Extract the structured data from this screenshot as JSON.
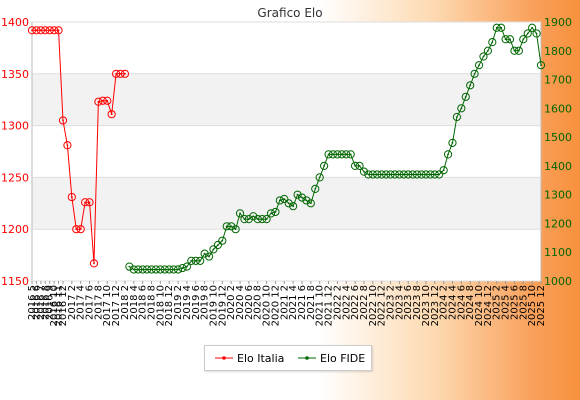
{
  "chart_data": {
    "type": "line",
    "title": "Grafico Elo",
    "grid": true,
    "legend_position": "bottom",
    "y_left": {
      "range": [
        1150,
        1400
      ],
      "ticks": [
        1150,
        1200,
        1250,
        1300,
        1350,
        1400
      ],
      "color": "#ff0000"
    },
    "y_right": {
      "range": [
        1000,
        1900
      ],
      "ticks": [
        1000,
        1100,
        1200,
        1300,
        1400,
        1500,
        1600,
        1700,
        1800,
        1900
      ],
      "color": "#006600"
    },
    "categories": [
      "2016 5",
      "2016 6",
      "2016 7",
      "2016 8",
      "2016 9",
      "2016 10",
      "2016 11",
      "2016 12",
      "2017 1",
      "2017 2",
      "2017 3",
      "2017 4",
      "2017 5",
      "2017 6",
      "2017 7",
      "2017 8",
      "2017 9",
      "2017 10",
      "2017 11",
      "2017 12",
      "2018 1",
      "2018 2",
      "2018 3",
      "2018 4",
      "2018 5",
      "2018 6",
      "2018 7",
      "2018 8",
      "2018 9",
      "2018 10",
      "2018 11",
      "2018 12",
      "2019 1",
      "2019 2",
      "2019 3",
      "2019 4",
      "2019 5",
      "2019 6",
      "2019 7",
      "2019 8",
      "2019 9",
      "2019 10",
      "2019 11",
      "2019 12",
      "2020 1",
      "2020 2",
      "2020 3",
      "2020 4",
      "2020 5",
      "2020 6",
      "2020 7",
      "2020 8",
      "2020 9",
      "2020 10",
      "2020 11",
      "2020 12",
      "2021 1",
      "2021 2",
      "2021 3",
      "2021 4",
      "2021 5",
      "2021 6",
      "2021 7",
      "2021 8",
      "2021 9",
      "2021 10",
      "2021 11",
      "2021 12",
      "2022 1",
      "2022 2",
      "2022 3",
      "2022 4",
      "2022 5",
      "2022 6",
      "2022 7",
      "2022 8",
      "2022 9",
      "2022 10",
      "2022 11",
      "2022 12",
      "2023 1",
      "2023 2",
      "2023 3",
      "2023 4",
      "2023 5",
      "2023 6",
      "2023 7",
      "2023 8",
      "2023 9",
      "2023 10",
      "2023 11",
      "2023 12",
      "2024 1",
      "2024 2",
      "2024 3",
      "2024 4",
      "2024 5",
      "2024 6",
      "2024 7",
      "2024 8",
      "2024 9",
      "2024 10",
      "2024 11",
      "2024 12",
      "2025 1",
      "2025 2",
      "2025 3",
      "2025 4",
      "2025 5",
      "2025 6",
      "2025 7",
      "2025 8",
      "2025 9",
      "2025 10",
      "2025 11",
      "2025 12"
    ],
    "x_tick_labels": [
      "2016 5",
      "2016 6",
      "2016 7",
      "2016 8",
      "2016 9",
      "2016 10",
      "2016 11",
      "2016 12",
      "2017 2",
      "2017 4",
      "2017 6",
      "2017 8",
      "2017 10",
      "2017 12",
      "2018 2",
      "2018 4",
      "2018 6",
      "2018 8",
      "2018 10",
      "2018 12",
      "2019 2",
      "2019 4",
      "2019 6",
      "2019 8",
      "2019 10",
      "2019 12",
      "2020 2",
      "2020 4",
      "2020 6",
      "2020 8",
      "2020 10",
      "2020 12",
      "2021 2",
      "2021 4",
      "2021 6",
      "2021 8",
      "2021 10",
      "2021 12",
      "2022 2",
      "2022 4",
      "2022 6",
      "2022 8",
      "2022 10",
      "2022 12",
      "2023 2",
      "2023 4",
      "2023 6",
      "2023 8",
      "2023 10",
      "2023 12",
      "2024 2",
      "2024 4",
      "2024 6",
      "2024 8",
      "2024 10",
      "2024 12",
      "2025 2",
      "2025 4",
      "2025 6",
      "2025 8",
      "2025 10",
      "2025 12"
    ],
    "series": [
      {
        "name": "Elo Italia",
        "axis": "left",
        "color": "#ff0000",
        "x": [
          "2016 5",
          "2016 6",
          "2016 7",
          "2016 8",
          "2016 9",
          "2016 10",
          "2016 11",
          "2016 12",
          "2017 1",
          "2017 2",
          "2017 3",
          "2017 4",
          "2017 5",
          "2017 6",
          "2017 7",
          "2017 8",
          "2017 9",
          "2017 10",
          "2017 11",
          "2017 12",
          "2018 1",
          "2018 2"
        ],
        "values": [
          1392,
          1392,
          1392,
          1392,
          1392,
          1392,
          1392,
          1305,
          1281,
          1231,
          1200,
          1200,
          1226,
          1226,
          1167,
          1323,
          1324,
          1324,
          1311,
          1350,
          1350,
          1350
        ]
      },
      {
        "name": "Elo FIDE",
        "axis": "right",
        "color": "#006600",
        "x": [
          "2018 3",
          "2018 4",
          "2018 5",
          "2018 6",
          "2018 7",
          "2018 8",
          "2018 9",
          "2018 10",
          "2018 11",
          "2018 12",
          "2019 1",
          "2019 2",
          "2019 3",
          "2019 4",
          "2019 5",
          "2019 6",
          "2019 7",
          "2019 8",
          "2019 9",
          "2019 10",
          "2019 11",
          "2019 12",
          "2020 1",
          "2020 2",
          "2020 3",
          "2020 4",
          "2020 5",
          "2020 6",
          "2020 7",
          "2020 8",
          "2020 9",
          "2020 10",
          "2020 11",
          "2020 12",
          "2021 1",
          "2021 2",
          "2021 3",
          "2021 4",
          "2021 5",
          "2021 6",
          "2021 7",
          "2021 8",
          "2021 9",
          "2021 10",
          "2021 11",
          "2021 12",
          "2022 1",
          "2022 2",
          "2022 3",
          "2022 4",
          "2022 5",
          "2022 6",
          "2022 7",
          "2022 8",
          "2022 9",
          "2022 10",
          "2022 11",
          "2022 12",
          "2023 1",
          "2023 2",
          "2023 3",
          "2023 4",
          "2023 5",
          "2023 6",
          "2023 7",
          "2023 8",
          "2023 9",
          "2023 10",
          "2023 11",
          "2023 12",
          "2024 1",
          "2024 2",
          "2024 3",
          "2024 4",
          "2024 5",
          "2024 6",
          "2024 7",
          "2024 8",
          "2024 9",
          "2024 10",
          "2024 11",
          "2024 12",
          "2025 1",
          "2025 2",
          "2025 3",
          "2025 4",
          "2025 5",
          "2025 6",
          "2025 7",
          "2025 8",
          "2025 9",
          "2025 10",
          "2025 11",
          "2025 12"
        ],
        "values": [
          1050,
          1040,
          1040,
          1040,
          1040,
          1040,
          1040,
          1040,
          1040,
          1040,
          1040,
          1040,
          1045,
          1050,
          1070,
          1070,
          1070,
          1095,
          1085,
          1110,
          1125,
          1140,
          1190,
          1190,
          1180,
          1235,
          1215,
          1215,
          1225,
          1215,
          1215,
          1215,
          1235,
          1240,
          1280,
          1285,
          1270,
          1260,
          1300,
          1290,
          1280,
          1270,
          1320,
          1360,
          1400,
          1440,
          1440,
          1440,
          1440,
          1440,
          1440,
          1400,
          1400,
          1380,
          1370,
          1370,
          1370,
          1370,
          1370,
          1370,
          1370,
          1370,
          1370,
          1370,
          1370,
          1370,
          1370,
          1370,
          1370,
          1370,
          1370,
          1385,
          1440,
          1480,
          1570,
          1600,
          1640,
          1680,
          1720,
          1750,
          1780,
          1800,
          1830,
          1880,
          1880,
          1840,
          1840,
          1800,
          1800,
          1840,
          1860,
          1880,
          1860,
          1750
        ]
      }
    ]
  }
}
